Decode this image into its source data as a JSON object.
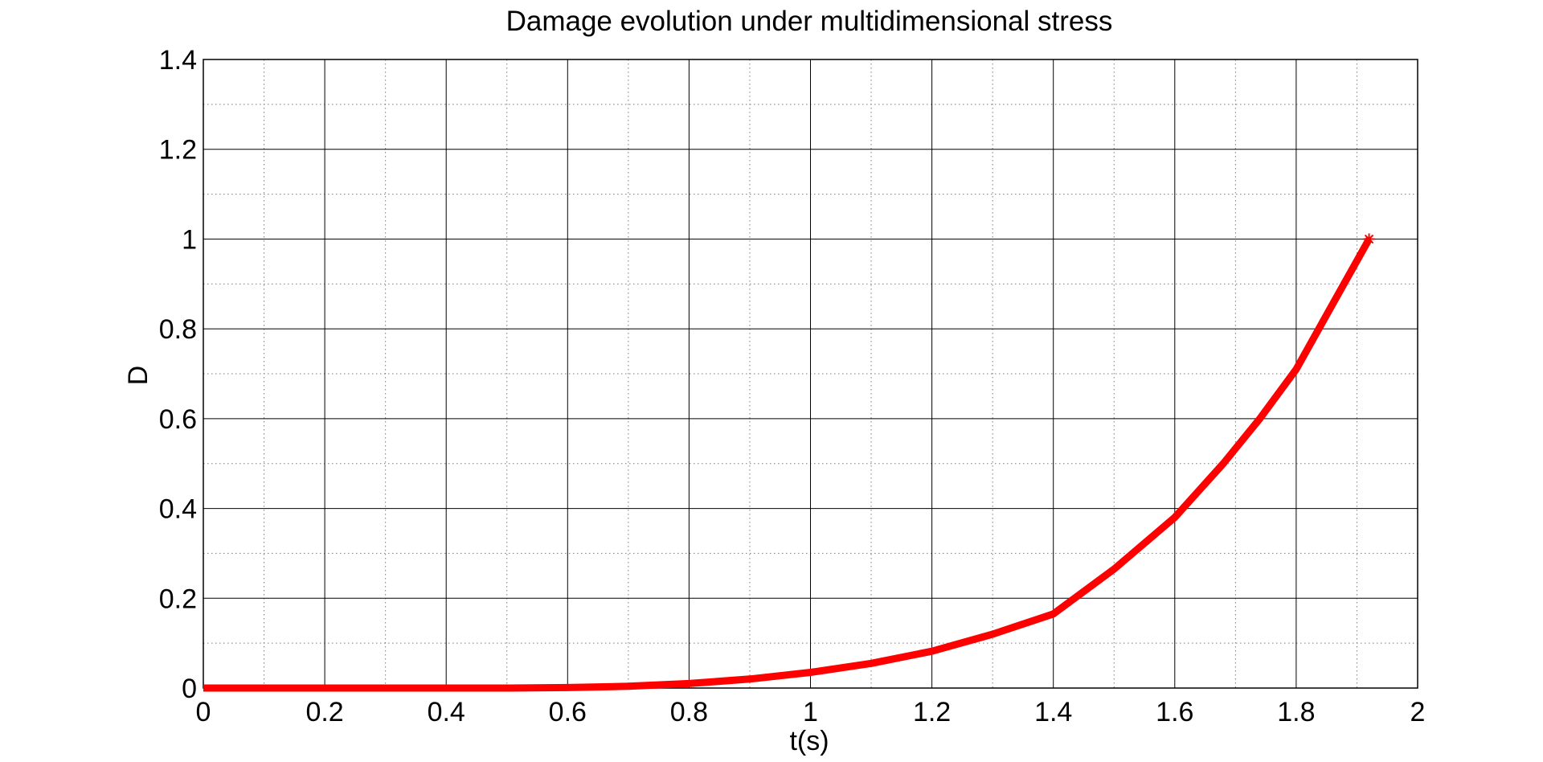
{
  "chart_data": {
    "type": "line",
    "title": "Damage evolution under multidimensional stress",
    "xlabel": "t(s)",
    "ylabel": "D",
    "xlim": [
      0,
      2
    ],
    "ylim": [
      0,
      1.4
    ],
    "xticks": [
      "0",
      "0.2",
      "0.4",
      "0.6",
      "0.8",
      "1",
      "1.2",
      "1.4",
      "1.6",
      "1.8",
      "2"
    ],
    "yticks": [
      "0",
      "0.2",
      "0.4",
      "0.6",
      "0.8",
      "1",
      "1.2",
      "1.4"
    ],
    "grid": true,
    "minor_grid": true,
    "legend": "none",
    "series": [
      {
        "color": "#ff0000",
        "marker_end": "*",
        "x": [
          0,
          0.1,
          0.2,
          0.3,
          0.4,
          0.5,
          0.6,
          0.7,
          0.8,
          0.9,
          1.0,
          1.1,
          1.2,
          1.3,
          1.4,
          1.5,
          1.6,
          1.68,
          1.74,
          1.8,
          1.86,
          1.92
        ],
        "y": [
          0,
          0,
          0,
          0,
          0,
          0,
          0.001,
          0.004,
          0.01,
          0.02,
          0.035,
          0.055,
          0.082,
          0.12,
          0.165,
          0.265,
          0.38,
          0.5,
          0.6,
          0.71,
          0.855,
          1.0
        ]
      }
    ]
  }
}
